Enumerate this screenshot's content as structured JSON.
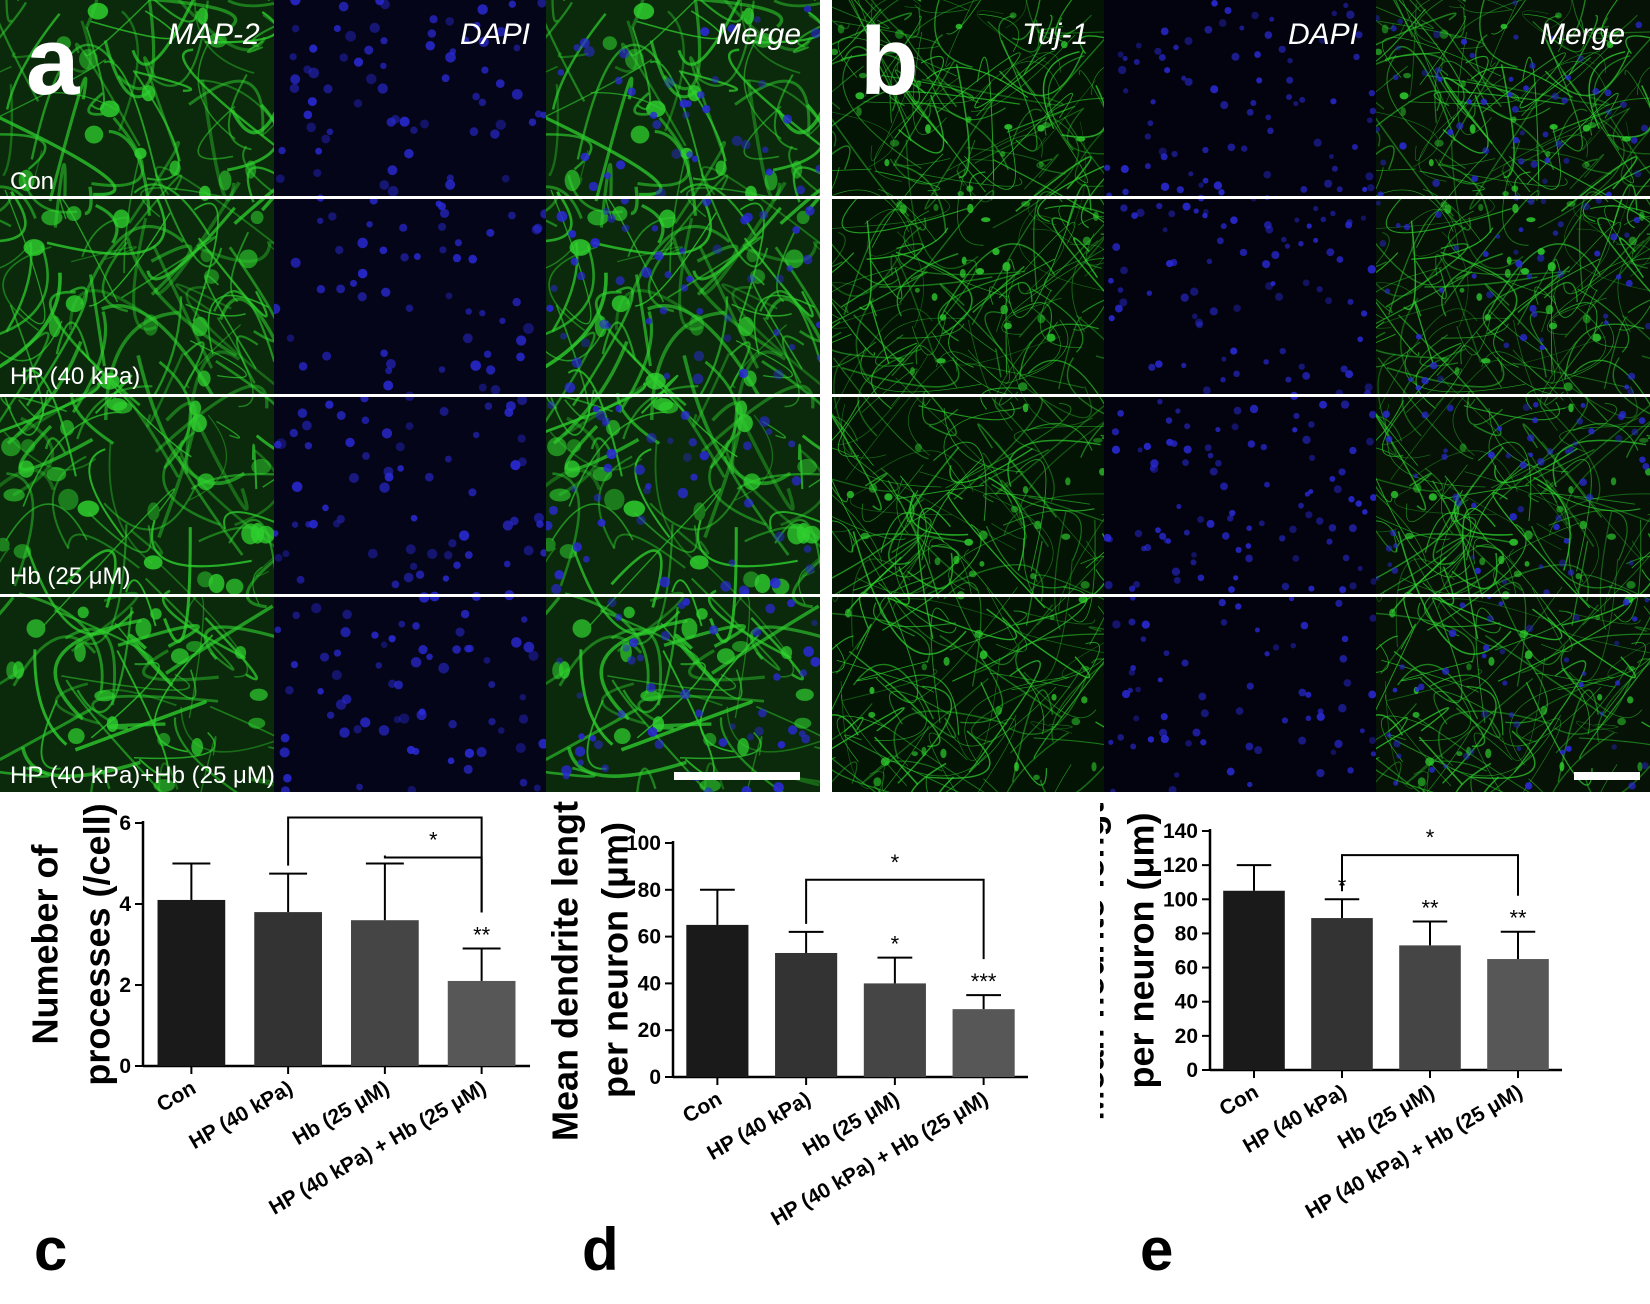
{
  "panel_a": {
    "letter": "a",
    "channels": [
      "MAP-2",
      "DAPI",
      "Merge"
    ],
    "rows": [
      "Con",
      "HP (40 kPa)",
      "Hb (25 μM)",
      "HP (40 kPa)+Hb (25 μM)"
    ]
  },
  "panel_b": {
    "letter": "b",
    "channels": [
      "Tuj-1",
      "DAPI",
      "Merge"
    ]
  },
  "colors": {
    "green_stain": "#2fd12f",
    "blue_stain": "#2a2ad8",
    "bar_con": "#1a1a1a",
    "bar_hp": "#333333",
    "bar_hb": "#454545",
    "bar_combo": "#575757"
  },
  "chart_data": [
    {
      "panel": "c",
      "type": "bar",
      "ylabel": [
        "Numeber of",
        "processes (/cell)"
      ],
      "categories": [
        "Con",
        "HP (40 kPa)",
        "Hb (25 μM)",
        "HP (40 kPa) + Hb (25 μM)"
      ],
      "values": [
        4.1,
        3.8,
        3.6,
        2.1
      ],
      "errors": [
        0.9,
        0.95,
        1.4,
        0.8
      ],
      "ylim": [
        0,
        6
      ],
      "yticks": [
        0,
        2,
        4,
        6
      ],
      "significance": [
        "",
        "",
        "",
        "**"
      ],
      "brackets": [
        {
          "from": 1,
          "to": 3,
          "label": "*"
        },
        {
          "from": 2,
          "to": 3,
          "label": "*"
        }
      ]
    },
    {
      "panel": "d",
      "type": "bar",
      "ylabel": [
        "Mean dendrite length",
        "per neuron (μm)"
      ],
      "categories": [
        "Con",
        "HP (40 kPa)",
        "Hb (25 μM)",
        "HP (40 kPa) + Hb (25 μM)"
      ],
      "values": [
        65,
        53,
        40,
        29
      ],
      "errors": [
        15,
        9,
        11,
        6
      ],
      "ylim": [
        0,
        100
      ],
      "yticks": [
        0,
        20,
        40,
        60,
        80,
        100
      ],
      "significance": [
        "",
        "",
        "*",
        "***"
      ],
      "brackets": [
        {
          "from": 1,
          "to": 3,
          "label": "*"
        }
      ]
    },
    {
      "panel": "e",
      "type": "bar",
      "ylabel": [
        "Mean neurite length",
        "per neuron (μm)"
      ],
      "categories": [
        "Con",
        "HP (40 kPa)",
        "Hb (25 μM)",
        "HP (40 kPa) + Hb (25 μM)"
      ],
      "values": [
        105,
        89,
        73,
        65
      ],
      "errors": [
        15,
        11,
        14,
        16
      ],
      "ylim": [
        0,
        140
      ],
      "yticks": [
        0,
        20,
        40,
        60,
        80,
        100,
        120,
        140
      ],
      "significance": [
        "",
        "*",
        "**",
        "**"
      ],
      "brackets": [
        {
          "from": 1,
          "to": 3,
          "label": "*"
        }
      ]
    }
  ]
}
